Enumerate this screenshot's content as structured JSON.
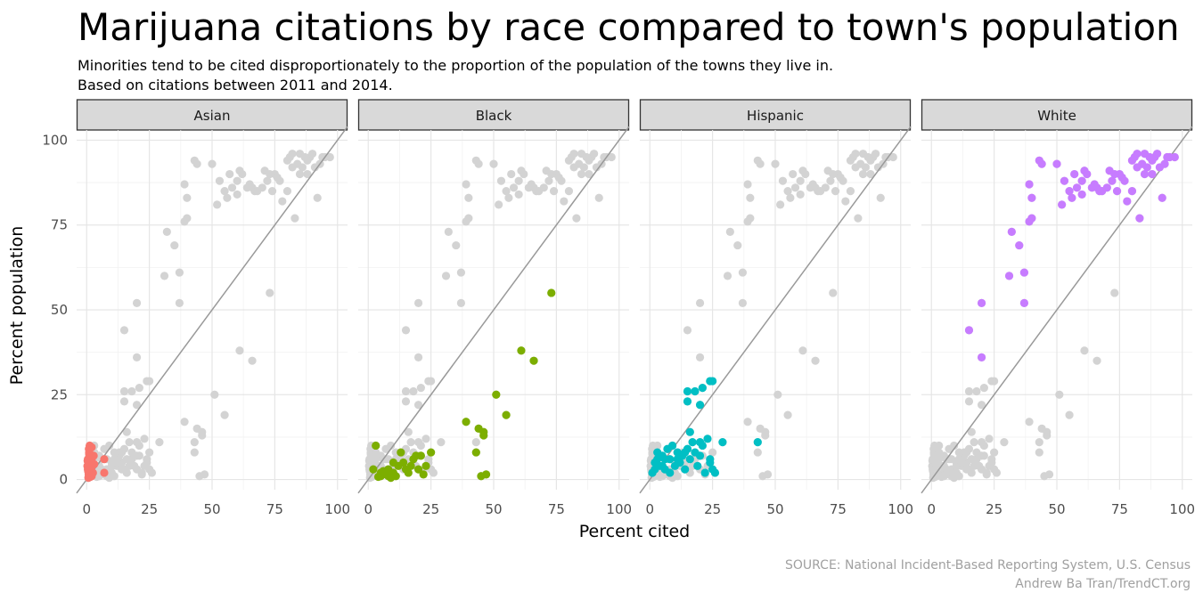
{
  "chart_data": {
    "type": "scatter",
    "title": "Marijuana citations by race compared to town's population",
    "subtitle": [
      "Minorities tend to be cited disproportionately to the proportion of the population of the towns they live in.",
      "Based on citations between 2011 and 2014."
    ],
    "xlabel": "Percent cited",
    "ylabel": "Percent population",
    "xlim": [
      -4,
      104
    ],
    "ylim": [
      -3,
      103
    ],
    "x_ticks": [
      0,
      25,
      50,
      75,
      100
    ],
    "y_ticks": [
      0,
      25,
      50,
      75,
      100
    ],
    "grid": true,
    "reference_line": "y = x",
    "background_points_color": "#d3d3d3",
    "reference_line_color": "#999999",
    "caption": [
      "SOURCE: National Incident-Based Reporting System, U.S. Census",
      "Andrew Ba Tran/TrendCT.org"
    ],
    "panels": [
      {
        "name": "Asian",
        "color": "#f8766d",
        "points": [
          [
            0.5,
            3
          ],
          [
            1,
            5
          ],
          [
            0.8,
            1.5
          ],
          [
            1.5,
            7
          ],
          [
            2,
            6
          ],
          [
            1,
            8
          ],
          [
            2,
            9.5
          ],
          [
            1.2,
            10
          ],
          [
            0.3,
            4
          ],
          [
            2.5,
            2
          ],
          [
            3,
            4.5
          ],
          [
            0.5,
            6
          ],
          [
            1.8,
            3.5
          ],
          [
            0.6,
            2.5
          ],
          [
            2.2,
            5
          ],
          [
            7,
            6
          ],
          [
            7,
            2
          ],
          [
            1.5,
            0.8
          ],
          [
            0.7,
            0.5
          ],
          [
            1,
            7.5
          ],
          [
            2,
            1
          ],
          [
            0.4,
            5.5
          ],
          [
            1.3,
            4
          ],
          [
            2.8,
            7
          ],
          [
            0.9,
            9
          ]
        ]
      },
      {
        "name": "Black",
        "color": "#7cae00",
        "points": [
          [
            3,
            10
          ],
          [
            2,
            3
          ],
          [
            5,
            2
          ],
          [
            7,
            1.5
          ],
          [
            8,
            3
          ],
          [
            10,
            2
          ],
          [
            12,
            4
          ],
          [
            14,
            5
          ],
          [
            16,
            2
          ],
          [
            18,
            6
          ],
          [
            20,
            3
          ],
          [
            22,
            1.5
          ],
          [
            23,
            4
          ],
          [
            25,
            8
          ],
          [
            13,
            8
          ],
          [
            17,
            4
          ],
          [
            19,
            7
          ],
          [
            21,
            7
          ],
          [
            5,
            1
          ],
          [
            8,
            1
          ],
          [
            9,
            0.5
          ],
          [
            11,
            1
          ],
          [
            4,
            0.8
          ],
          [
            6,
            2.5
          ],
          [
            15,
            3
          ],
          [
            10,
            5
          ],
          [
            39,
            17
          ],
          [
            44,
            15
          ],
          [
            46,
            14
          ],
          [
            46,
            13
          ],
          [
            43,
            8
          ],
          [
            45,
            1
          ],
          [
            47,
            1.5
          ],
          [
            51,
            25
          ],
          [
            55,
            19
          ],
          [
            61,
            38
          ],
          [
            66,
            35
          ],
          [
            73,
            55
          ]
        ]
      },
      {
        "name": "Hispanic",
        "color": "#00bfc4",
        "points": [
          [
            1,
            2
          ],
          [
            2,
            5
          ],
          [
            3,
            8
          ],
          [
            4,
            4
          ],
          [
            5,
            7
          ],
          [
            6,
            3
          ],
          [
            7,
            9
          ],
          [
            8,
            6
          ],
          [
            9,
            10
          ],
          [
            10,
            4
          ],
          [
            11,
            8
          ],
          [
            12,
            5
          ],
          [
            13,
            7
          ],
          [
            14,
            3
          ],
          [
            15,
            9
          ],
          [
            16,
            6
          ],
          [
            17,
            11
          ],
          [
            18,
            8
          ],
          [
            19,
            4
          ],
          [
            20,
            7
          ],
          [
            21,
            10
          ],
          [
            22,
            2
          ],
          [
            23,
            12
          ],
          [
            24,
            5
          ],
          [
            25,
            3
          ],
          [
            2,
            3
          ],
          [
            5,
            4
          ],
          [
            8,
            2
          ],
          [
            11,
            6
          ],
          [
            14,
            8
          ],
          [
            15,
            23
          ],
          [
            15,
            26
          ],
          [
            18,
            26
          ],
          [
            20,
            22
          ],
          [
            21,
            27
          ],
          [
            24,
            29
          ],
          [
            25,
            29
          ],
          [
            29,
            11
          ],
          [
            43,
            11
          ],
          [
            16,
            14
          ],
          [
            20,
            11
          ],
          [
            24,
            6
          ],
          [
            26,
            2
          ],
          [
            3,
            6
          ],
          [
            6,
            6
          ]
        ]
      },
      {
        "name": "White",
        "color": "#c77cff",
        "points": [
          [
            15,
            44
          ],
          [
            20,
            52
          ],
          [
            20,
            36
          ],
          [
            31,
            60
          ],
          [
            32,
            73
          ],
          [
            35,
            69
          ],
          [
            37,
            61
          ],
          [
            37,
            52
          ],
          [
            40,
            83
          ],
          [
            40,
            77
          ],
          [
            39,
            87
          ],
          [
            39,
            76
          ],
          [
            43,
            94
          ],
          [
            44,
            93
          ],
          [
            50,
            93
          ],
          [
            52,
            81
          ],
          [
            53,
            88
          ],
          [
            55,
            85
          ],
          [
            56,
            83
          ],
          [
            57,
            90
          ],
          [
            58,
            86
          ],
          [
            60,
            88
          ],
          [
            61,
            91
          ],
          [
            62,
            90
          ],
          [
            64,
            86
          ],
          [
            65,
            87
          ],
          [
            66,
            86
          ],
          [
            67,
            85
          ],
          [
            68,
            85
          ],
          [
            70,
            86
          ],
          [
            71,
            91
          ],
          [
            73,
            90
          ],
          [
            74,
            85
          ],
          [
            75,
            90
          ],
          [
            76,
            89
          ],
          [
            77,
            88
          ],
          [
            78,
            82
          ],
          [
            80,
            85
          ],
          [
            80,
            94
          ],
          [
            81,
            95
          ],
          [
            82,
            96
          ],
          [
            83,
            77
          ],
          [
            84,
            93
          ],
          [
            85,
            96
          ],
          [
            86,
            92
          ],
          [
            87,
            95
          ],
          [
            88,
            90
          ],
          [
            89,
            95
          ],
          [
            90,
            96
          ],
          [
            91,
            92
          ],
          [
            92,
            83
          ],
          [
            93,
            93
          ],
          [
            94,
            95
          ],
          [
            95,
            95
          ],
          [
            97,
            95
          ],
          [
            82,
            92
          ],
          [
            85,
            90
          ],
          [
            88,
            94
          ],
          [
            60,
            84
          ],
          [
            72,
            88
          ]
        ]
      }
    ]
  }
}
